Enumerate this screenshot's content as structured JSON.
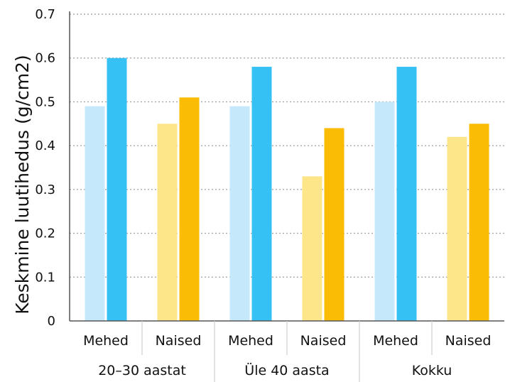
{
  "chart_data": {
    "type": "bar",
    "title": "",
    "xlabel": "",
    "ylabel": "Keskmine luutihedus (g/cm2)",
    "ylim": [
      0,
      0.7
    ],
    "yticks": [
      "0",
      "0.1",
      "0.2",
      "0.3",
      "0.4",
      "0.5",
      "0.6",
      "0.7"
    ],
    "grid": true,
    "groups": [
      "20–30 aastat",
      "Üle 40 aasta",
      "Kokku"
    ],
    "subcategories": [
      "Mehed",
      "Naised"
    ],
    "bars": [
      {
        "group": 0,
        "sub": "Mehed",
        "values": [
          0.49,
          0.6
        ],
        "colors": [
          "#c5e9fb",
          "#36c1f4"
        ]
      },
      {
        "group": 0,
        "sub": "Naised",
        "values": [
          0.45,
          0.51
        ],
        "colors": [
          "#fde68a",
          "#fbbc05"
        ]
      },
      {
        "group": 1,
        "sub": "Mehed",
        "values": [
          0.49,
          0.58
        ],
        "colors": [
          "#c5e9fb",
          "#36c1f4"
        ]
      },
      {
        "group": 1,
        "sub": "Naised",
        "values": [
          0.33,
          0.44
        ],
        "colors": [
          "#fde68a",
          "#fbbc05"
        ]
      },
      {
        "group": 2,
        "sub": "Mehed",
        "values": [
          0.5,
          0.58
        ],
        "colors": [
          "#c5e9fb",
          "#36c1f4"
        ]
      },
      {
        "group": 2,
        "sub": "Naised",
        "values": [
          0.42,
          0.45
        ],
        "colors": [
          "#fde68a",
          "#fbbc05"
        ]
      }
    ]
  }
}
